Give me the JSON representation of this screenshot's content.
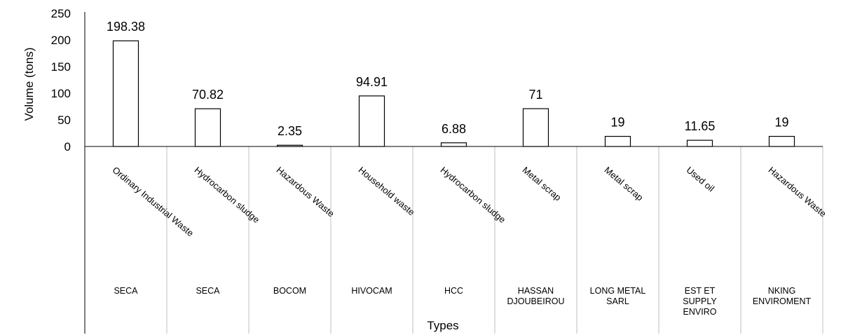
{
  "chart_data": {
    "type": "bar",
    "title": "",
    "ylabel": "Volume (tons)",
    "xlabel": "Types",
    "ylim": [
      0,
      250
    ],
    "yticks": [
      "0",
      "50",
      "100",
      "150",
      "200",
      "250"
    ],
    "grid": false,
    "legend": "none",
    "bar_fill": "#ffffff",
    "bar_stroke": "#000000",
    "categories": [
      {
        "type": "Ordinary Industrial Waste",
        "company": [
          "SECA"
        ],
        "value": 198.38,
        "label": "198.38"
      },
      {
        "type": "Hydrocarbon sludge",
        "company": [
          "SECA"
        ],
        "value": 70.82,
        "label": "70.82"
      },
      {
        "type": "Hazardous Waste",
        "company": [
          "BOCOM"
        ],
        "value": 2.35,
        "label": "2.35"
      },
      {
        "type": "Household waste",
        "company": [
          "HIVOCAM"
        ],
        "value": 94.91,
        "label": "94.91"
      },
      {
        "type": "Hydrocarbon sludge",
        "company": [
          "HCC"
        ],
        "value": 6.88,
        "label": "6.88"
      },
      {
        "type": "Metal scrap",
        "company": [
          "HASSAN",
          "DJOUBEIROU"
        ],
        "value": 71,
        "label": "71"
      },
      {
        "type": "Metal scrap",
        "company": [
          "LONG METAL",
          "SARL"
        ],
        "value": 19,
        "label": "19"
      },
      {
        "type": "Used oil",
        "company": [
          "EST ET",
          "SUPPLY",
          "ENVIRO"
        ],
        "value": 11.65,
        "label": "11.65"
      },
      {
        "type": "Hazardous Waste",
        "company": [
          "NKING",
          "ENVIROMENT"
        ],
        "value": 19,
        "label": "19"
      }
    ]
  }
}
